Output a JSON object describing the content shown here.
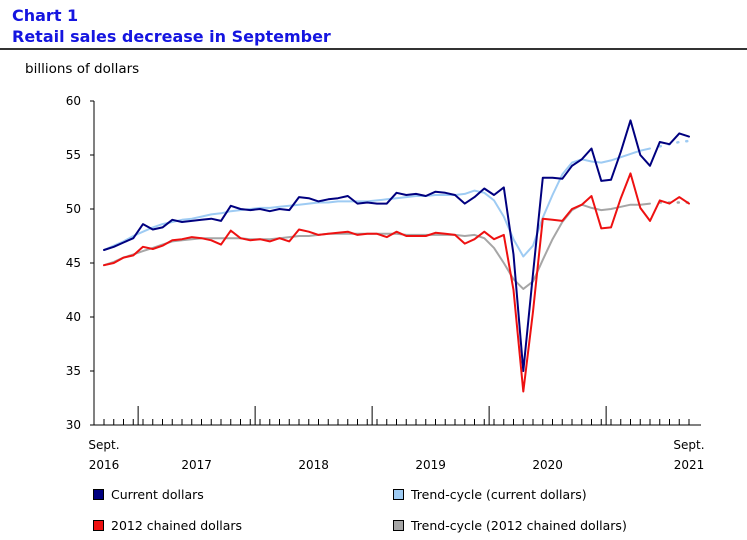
{
  "chart_data": {
    "type": "line",
    "title": "Chart 1",
    "subtitle": "Retail sales decrease in September",
    "ylabel": "billions of dollars",
    "xlabel": "",
    "ylim": [
      30,
      60
    ],
    "yticks": [
      30,
      35,
      40,
      45,
      50,
      55,
      60
    ],
    "grid": false,
    "x_start": "September 2016",
    "x_end": "September 2021",
    "x_tick_labels": [
      {
        "label": "Sept.",
        "sub": "2016",
        "month_index": 0
      },
      {
        "label": "",
        "sub": "2017",
        "month_index": 9.5
      },
      {
        "label": "",
        "sub": "2018",
        "month_index": 21.5
      },
      {
        "label": "",
        "sub": "2019",
        "month_index": 33.5
      },
      {
        "label": "",
        "sub": "2020",
        "month_index": 45.5
      },
      {
        "label": "Sept.",
        "sub": "2021",
        "month_index": 60
      }
    ],
    "legend": [
      "Current dollars",
      "Trend-cycle (current dollars)",
      "2012 chained dollars",
      "Trend-cycle (2012 chained dollars)"
    ],
    "series": [
      {
        "name": "Current dollars",
        "color": "#00007f",
        "dash": false,
        "values": [
          46.2,
          46.5,
          46.9,
          47.3,
          48.6,
          48.1,
          48.3,
          49.0,
          48.8,
          48.9,
          49.0,
          49.1,
          48.9,
          50.3,
          50.0,
          49.9,
          50.0,
          49.8,
          50.0,
          49.9,
          51.1,
          51.0,
          50.7,
          50.9,
          51.0,
          51.2,
          50.5,
          50.6,
          50.5,
          50.5,
          51.5,
          51.3,
          51.4,
          51.2,
          51.6,
          51.5,
          51.3,
          50.5,
          51.1,
          51.9,
          51.3,
          52.0,
          45.8,
          35.0,
          44.0,
          52.9,
          52.9,
          52.8,
          54.0,
          54.6,
          55.6,
          52.6,
          52.7,
          55.3,
          58.2,
          55.0,
          54.0,
          56.2,
          56.0,
          57.0,
          56.7
        ]
      },
      {
        "name": "Trend-cycle (current dollars)",
        "color": "#9ecbf3",
        "dash": false,
        "values": [
          46.2,
          46.6,
          47.0,
          47.5,
          47.9,
          48.3,
          48.6,
          48.8,
          49.0,
          49.1,
          49.3,
          49.5,
          49.6,
          49.8,
          49.9,
          50.0,
          50.1,
          50.1,
          50.2,
          50.3,
          50.4,
          50.5,
          50.6,
          50.6,
          50.7,
          50.7,
          50.7,
          50.7,
          50.8,
          50.9,
          51.0,
          51.1,
          51.2,
          51.2,
          51.3,
          51.3,
          51.3,
          51.4,
          51.7,
          51.5,
          50.8,
          49.3,
          47.2,
          45.6,
          46.6,
          49.2,
          51.3,
          53.2,
          54.3,
          54.6,
          54.4,
          54.3,
          54.5,
          54.8,
          55.1,
          55.4,
          55.6,
          null,
          null,
          null,
          null
        ]
      },
      {
        "name": "Trend-cycle (current dollars) projected",
        "color": "#9ecbf3",
        "dash": true,
        "values": [
          null,
          null,
          null,
          null,
          null,
          null,
          null,
          null,
          null,
          null,
          null,
          null,
          null,
          null,
          null,
          null,
          null,
          null,
          null,
          null,
          null,
          null,
          null,
          null,
          null,
          null,
          null,
          null,
          null,
          null,
          null,
          null,
          null,
          null,
          null,
          null,
          null,
          null,
          null,
          null,
          null,
          null,
          null,
          null,
          null,
          null,
          null,
          null,
          null,
          null,
          null,
          null,
          null,
          null,
          null,
          null,
          null,
          55.8,
          56.0,
          56.2,
          56.3
        ]
      },
      {
        "name": "2012 chained dollars",
        "color": "#ee1111",
        "dash": false,
        "values": [
          44.8,
          45.0,
          45.5,
          45.7,
          46.5,
          46.3,
          46.6,
          47.1,
          47.2,
          47.4,
          47.3,
          47.1,
          46.7,
          48.0,
          47.3,
          47.1,
          47.2,
          47.0,
          47.3,
          47.0,
          48.1,
          47.9,
          47.6,
          47.7,
          47.8,
          47.9,
          47.6,
          47.7,
          47.7,
          47.4,
          47.9,
          47.5,
          47.5,
          47.5,
          47.8,
          47.7,
          47.6,
          46.8,
          47.2,
          47.9,
          47.2,
          47.6,
          42.5,
          33.1,
          40.5,
          49.1,
          49.0,
          48.9,
          50.0,
          50.4,
          51.2,
          48.2,
          48.3,
          51.0,
          53.3,
          50.1,
          48.9,
          50.8,
          50.5,
          51.1,
          50.5
        ]
      },
      {
        "name": "Trend-cycle (2012 chained dollars)",
        "color": "#a6a6a6",
        "dash": false,
        "values": [
          44.8,
          45.1,
          45.5,
          45.8,
          46.1,
          46.4,
          46.7,
          47.0,
          47.1,
          47.2,
          47.3,
          47.3,
          47.3,
          47.3,
          47.3,
          47.2,
          47.2,
          47.2,
          47.3,
          47.4,
          47.5,
          47.5,
          47.6,
          47.7,
          47.7,
          47.7,
          47.7,
          47.7,
          47.7,
          47.7,
          47.7,
          47.6,
          47.6,
          47.6,
          47.6,
          47.6,
          47.6,
          47.5,
          47.6,
          47.3,
          46.4,
          45.0,
          43.5,
          42.6,
          43.3,
          45.3,
          47.2,
          48.8,
          49.9,
          50.4,
          50.1,
          49.9,
          50.0,
          50.2,
          50.4,
          50.4,
          50.5,
          null,
          null,
          null,
          null
        ]
      },
      {
        "name": "Trend-cycle (2012 chained dollars) projected",
        "color": "#a6a6a6",
        "dash": true,
        "values": [
          null,
          null,
          null,
          null,
          null,
          null,
          null,
          null,
          null,
          null,
          null,
          null,
          null,
          null,
          null,
          null,
          null,
          null,
          null,
          null,
          null,
          null,
          null,
          null,
          null,
          null,
          null,
          null,
          null,
          null,
          null,
          null,
          null,
          null,
          null,
          null,
          null,
          null,
          null,
          null,
          null,
          null,
          null,
          null,
          null,
          null,
          null,
          null,
          null,
          null,
          null,
          null,
          null,
          null,
          null,
          null,
          null,
          50.6,
          50.6,
          50.6,
          50.6
        ]
      }
    ]
  },
  "colors": {
    "title": "#1515e0",
    "current": "#00007f",
    "trend_current": "#9ecbf3",
    "chained": "#ee1111",
    "trend_chained": "#a6a6a6"
  }
}
